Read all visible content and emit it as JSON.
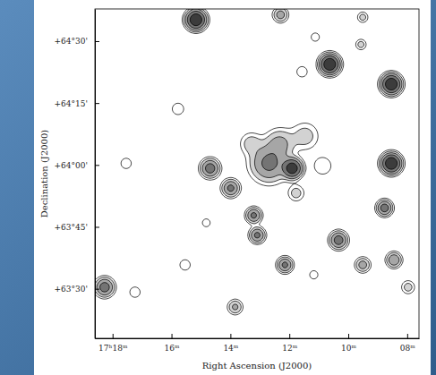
{
  "chart_data": {
    "type": "contour",
    "xlabel": "Right Ascension (J2000)",
    "ylabel": "Declination (J2000)",
    "xlim": [
      18.6,
      7.6
    ],
    "ylim": [
      63.3,
      64.63
    ],
    "xticks": [
      {
        "value": 18,
        "label": "17ʰ18ᵐ"
      },
      {
        "value": 16,
        "label": "16ᵐ"
      },
      {
        "value": 14,
        "label": "14ᵐ"
      },
      {
        "value": 12,
        "label": "12ᵐ"
      },
      {
        "value": 10,
        "label": "10ᵐ"
      },
      {
        "value": 8,
        "label": "08ᵐ"
      }
    ],
    "yticks": [
      {
        "value": 64.5,
        "label": "+64°30'"
      },
      {
        "value": 64.25,
        "label": "+64°15'"
      },
      {
        "value": 64.0,
        "label": "+64°00'"
      },
      {
        "value": 63.75,
        "label": "+63°45'"
      },
      {
        "value": 63.5,
        "label": "+63°30'"
      }
    ],
    "levels": [
      1,
      2,
      4,
      8,
      16
    ],
    "colors": [
      "#ffffff",
      "#d2d2d2",
      "#a6a6a6",
      "#747474",
      "#3c3c3c"
    ],
    "sources": [
      {
        "x": 15.2,
        "y": 64.59,
        "peak": 30,
        "size": 3
      },
      {
        "x": 12.33,
        "y": 64.61,
        "peak": 6,
        "size": 2.5
      },
      {
        "x": 10.66,
        "y": 64.41,
        "peak": 30,
        "size": 3
      },
      {
        "x": 9.6,
        "y": 64.49,
        "peak": 3,
        "size": 2
      },
      {
        "x": 9.54,
        "y": 64.6,
        "peak": 3,
        "size": 2
      },
      {
        "x": 8.57,
        "y": 64.33,
        "peak": 30,
        "size": 3
      },
      {
        "x": 8.57,
        "y": 64.01,
        "peak": 30,
        "size": 3
      },
      {
        "x": 8.8,
        "y": 63.83,
        "peak": 12,
        "size": 2.5
      },
      {
        "x": 10.36,
        "y": 63.7,
        "peak": 12,
        "size": 2.8
      },
      {
        "x": 9.54,
        "y": 63.6,
        "peak": 6,
        "size": 2.5
      },
      {
        "x": 8.48,
        "y": 63.62,
        "peak": 8,
        "size": 2.5
      },
      {
        "x": 12.18,
        "y": 63.6,
        "peak": 10,
        "size": 2.5
      },
      {
        "x": 13.87,
        "y": 63.43,
        "peak": 5,
        "size": 2.5
      },
      {
        "x": 18.3,
        "y": 63.51,
        "peak": 12,
        "size": 3
      },
      {
        "x": 14.72,
        "y": 63.99,
        "peak": 12,
        "size": 3
      },
      {
        "x": 14.02,
        "y": 63.91,
        "peak": 10,
        "size": 2.8
      },
      {
        "x": 13.24,
        "y": 63.8,
        "peak": 10,
        "size": 2.5
      },
      {
        "x": 13.12,
        "y": 63.72,
        "peak": 10,
        "size": 2.5
      },
      {
        "x": 12.72,
        "y": 64.01,
        "peak": 10,
        "size": 6
      },
      {
        "x": 11.93,
        "y": 63.99,
        "peak": 25,
        "size": 3
      },
      {
        "x": 12.36,
        "y": 64.09,
        "peak": 5,
        "size": 5
      },
      {
        "x": 11.5,
        "y": 64.12,
        "peak": 3,
        "size": 5
      },
      {
        "x": 11.8,
        "y": 63.89,
        "peak": 3,
        "size": 3
      },
      {
        "x": 13.33,
        "y": 64.09,
        "peak": 3,
        "size": 4
      },
      {
        "x": 10.9,
        "y": 64.0,
        "peak": 2,
        "size": 4
      },
      {
        "x": 11.6,
        "y": 64.38,
        "peak": 2,
        "size": 2.5
      },
      {
        "x": 11.15,
        "y": 64.52,
        "peak": 2,
        "size": 2
      },
      {
        "x": 15.81,
        "y": 64.23,
        "peak": 1.8,
        "size": 3
      },
      {
        "x": 17.57,
        "y": 64.01,
        "peak": 2,
        "size": 2.5
      },
      {
        "x": 15.57,
        "y": 63.6,
        "peak": 2,
        "size": 2.5
      },
      {
        "x": 17.27,
        "y": 63.49,
        "peak": 2,
        "size": 2.5
      },
      {
        "x": 11.2,
        "y": 63.56,
        "peak": 2,
        "size": 2
      },
      {
        "x": 8.0,
        "y": 63.51,
        "peak": 3,
        "size": 2.5
      },
      {
        "x": 14.85,
        "y": 63.77,
        "peak": 1.5,
        "size": 2.5
      }
    ]
  }
}
